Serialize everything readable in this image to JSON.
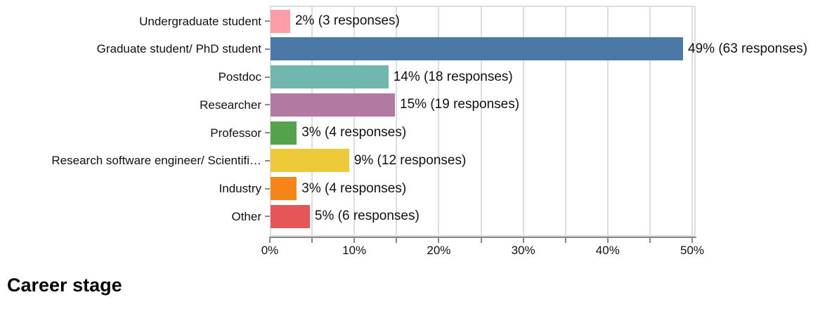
{
  "chart_data": {
    "type": "bar",
    "orientation": "horizontal",
    "title": "Career stage",
    "xlabel": "",
    "ylabel": "",
    "x_axis": {
      "unit": "percent",
      "range_pct": [
        0,
        50.4
      ],
      "major_tick_values": [
        0,
        10,
        20,
        30,
        40,
        50
      ],
      "tick_labels": [
        "0%",
        "10%",
        "20%",
        "30%",
        "40%",
        "50%"
      ],
      "minor_tick_values": [
        5,
        15,
        25,
        35,
        45
      ],
      "grid": true
    },
    "categories": [
      "Undergraduate student",
      "Graduate student/ PhD student",
      "Postdoc",
      "Researcher",
      "Professor",
      "Research software engineer/ Scientifi…",
      "Industry",
      "Other"
    ],
    "percent_values": [
      2,
      49,
      14,
      15,
      3,
      9,
      3,
      5
    ],
    "response_counts": [
      3,
      63,
      18,
      19,
      4,
      12,
      4,
      6
    ],
    "value_labels": [
      "2% (3 responses)",
      "49% (63 responses)",
      "14% (18 responses)",
      "15% (19 responses)",
      "3% (4 responses)",
      "9% (12 responses)",
      "3% (4 responses)",
      "5% (6 responses)"
    ],
    "bar_colors": [
      "#FF9DA6",
      "#4C78A8",
      "#70B7AE",
      "#B279A2",
      "#54A24B",
      "#EECA3B",
      "#F58518",
      "#E45756"
    ],
    "colors": {
      "grid": "#DDDDDD",
      "plot_border": "#DDDDDD",
      "axis_line": "#888888",
      "tick": "#888888",
      "text": "#111111",
      "background": "#FFFFFF"
    },
    "legend": "none"
  }
}
